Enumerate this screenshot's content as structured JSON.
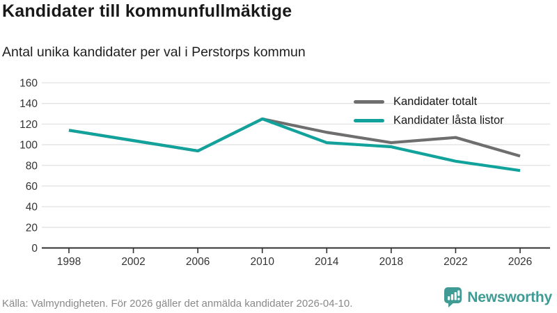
{
  "chart_data": {
    "type": "line",
    "title": "Kandidater till kommunfullmäktige",
    "subtitle": "Antal unika kandidater per val i Perstorps kommun",
    "categories": [
      "1998",
      "2002",
      "2006",
      "2010",
      "2014",
      "2018",
      "2022",
      "2026"
    ],
    "series": [
      {
        "name": "Kandidater totalt",
        "color": "#6E6E6E",
        "values": [
          114,
          104,
          94,
          125,
          112,
          102,
          107,
          89
        ]
      },
      {
        "name": "Kandidater låsta listor",
        "color": "#11A29B",
        "values": [
          114,
          104,
          94,
          125,
          102,
          98,
          84,
          75
        ]
      }
    ],
    "xlabel": "",
    "ylabel": "",
    "ylim": [
      0,
      160
    ],
    "ytick_step": 20,
    "grid": "horizontal",
    "legend_position": "top-right",
    "axis_color": "#303030",
    "grid_color": "#E2E2E2",
    "tick_label_color": "#333333"
  },
  "footer": {
    "source": "Källa: Valmyndigheten. För 2026 gäller det anmälda kandidater 2026-04-10.",
    "brand": "Newsworthy",
    "brand_color": "#3F9B94"
  }
}
